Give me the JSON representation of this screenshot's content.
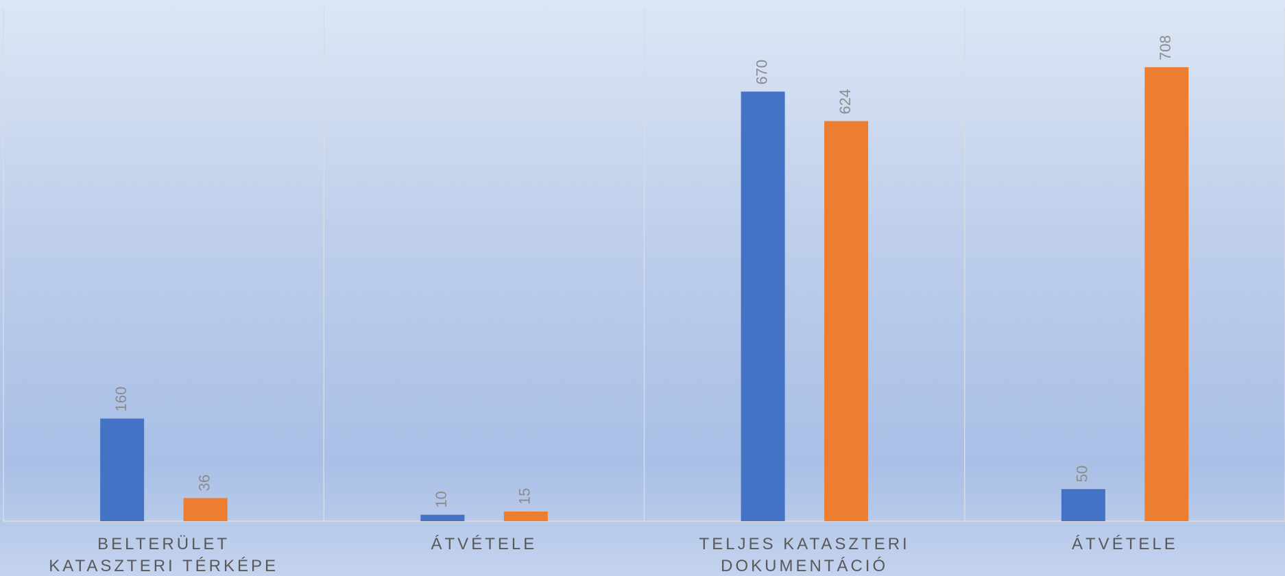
{
  "chart_data": {
    "type": "bar",
    "categories": [
      "BELTERÜLET KATASZTERI TÉRKÉPE",
      "ÁTVÉTELE",
      "TELJES KATASZTERI DOKUMENTÁCIÓ",
      "ÁTVÉTELE"
    ],
    "series": [
      {
        "color": "#4472c4",
        "values": [
          160,
          10,
          670,
          50
        ]
      },
      {
        "color": "#ed7d31",
        "values": [
          36,
          15,
          624,
          708
        ]
      }
    ],
    "ylim": [
      0,
      800
    ]
  }
}
